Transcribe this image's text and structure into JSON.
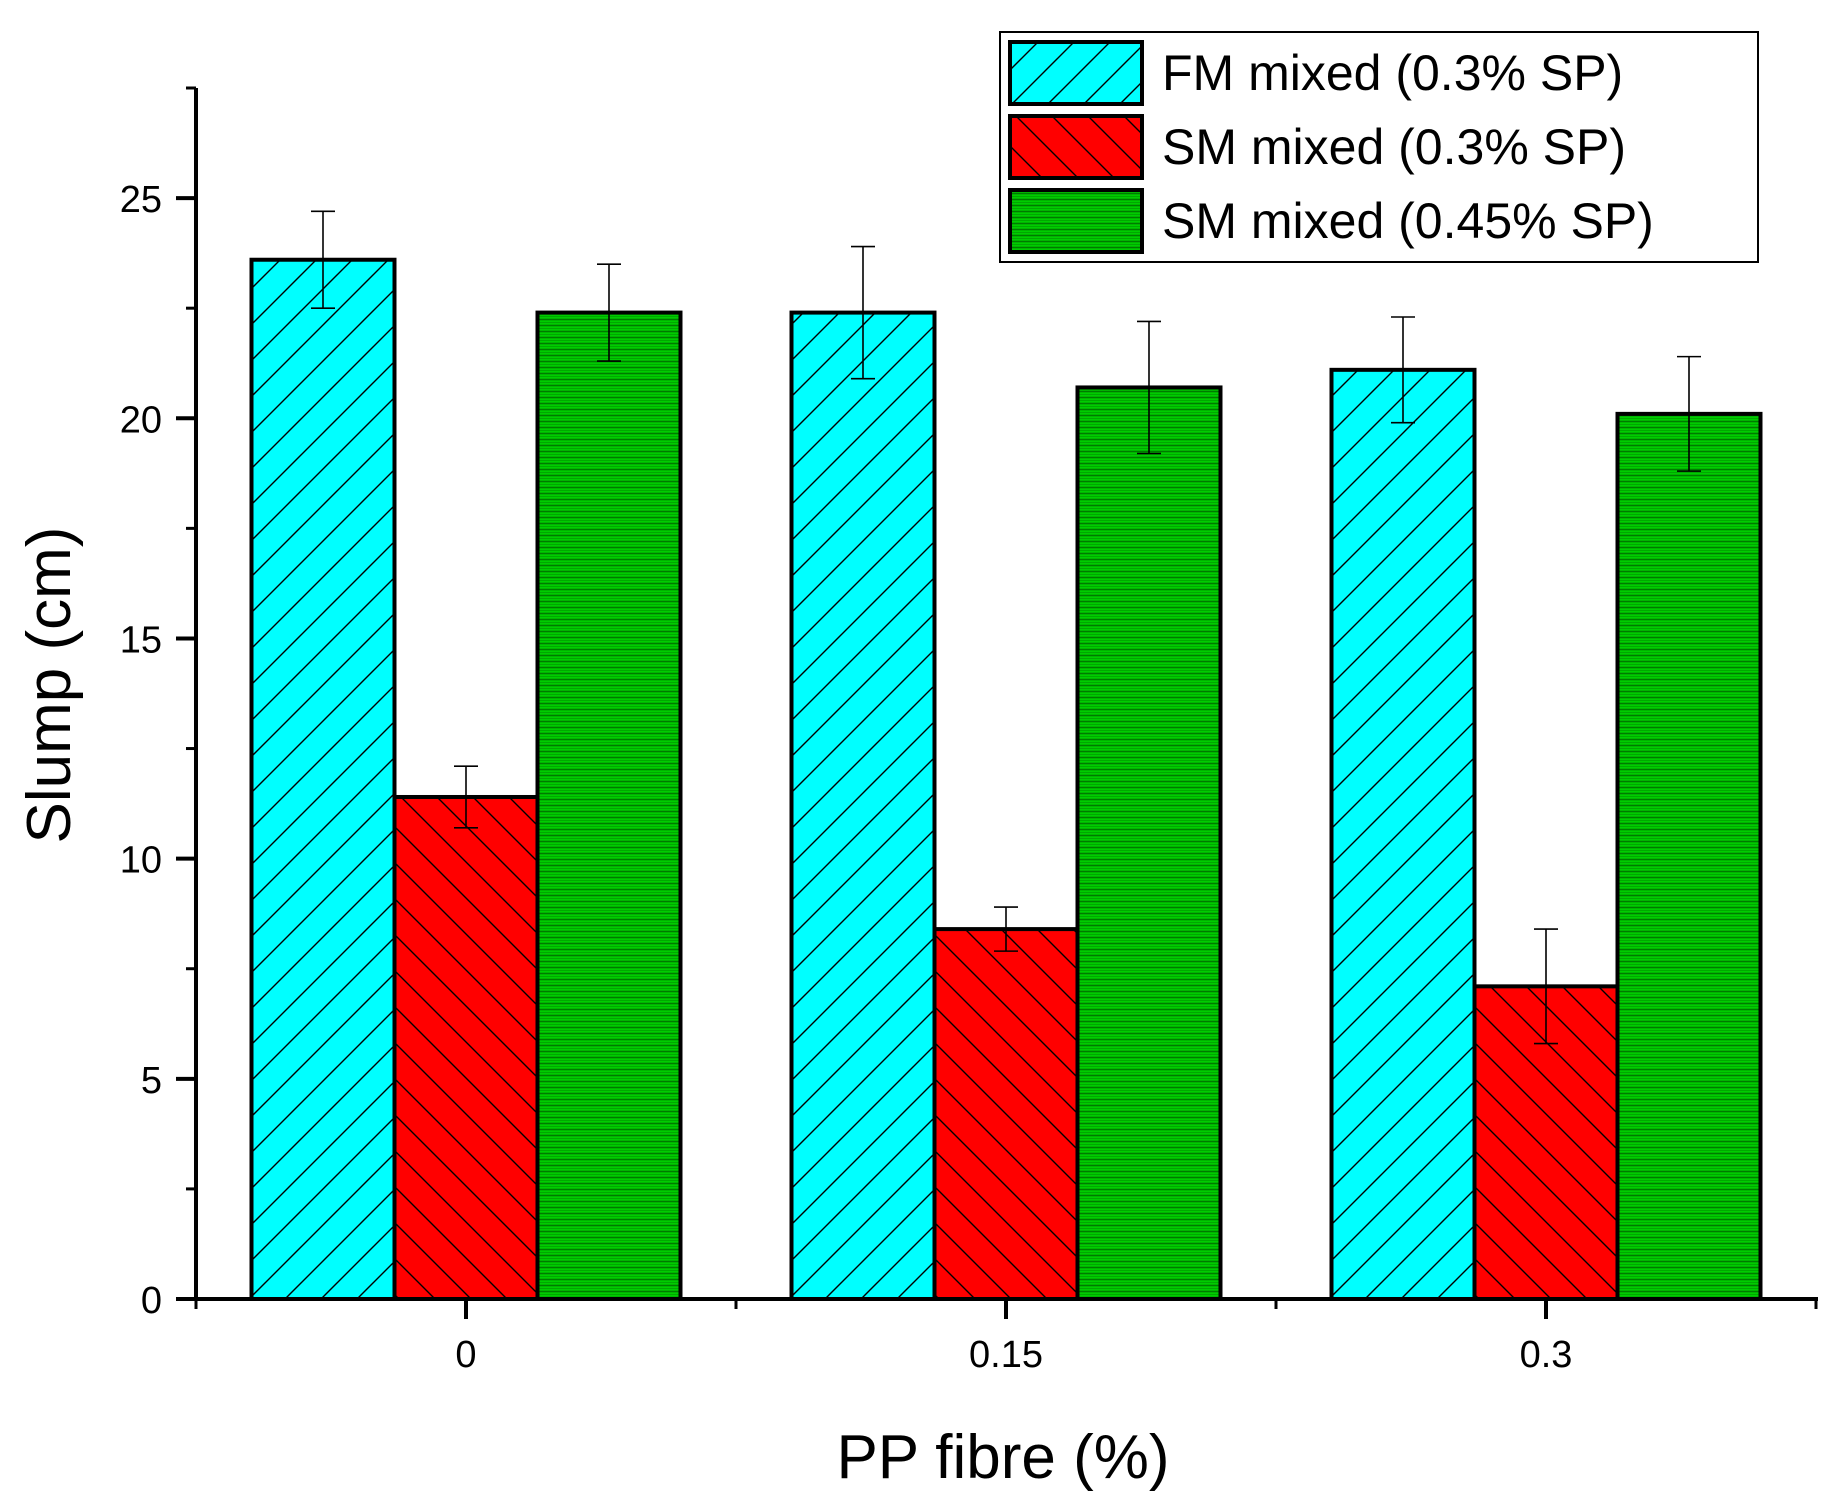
{
  "chart_data": {
    "type": "bar",
    "title": "",
    "xlabel": "PP fibre (%)",
    "ylabel": "Slump (cm)",
    "categories": [
      "0",
      "0.15",
      "0.3"
    ],
    "ylim": [
      0,
      27.5
    ],
    "yticks": [
      0,
      5,
      10,
      15,
      20,
      25
    ],
    "ytick_labels": [
      "0",
      "5",
      "10",
      "15",
      "20",
      "25"
    ],
    "grid": false,
    "legend_position": "top-right",
    "series": [
      {
        "name": "FM mixed (0.3% SP)",
        "color": "#00ffff",
        "pattern": "diagonal-forward",
        "values": [
          23.6,
          22.4,
          21.1
        ],
        "errors": [
          1.1,
          1.5,
          1.2
        ]
      },
      {
        "name": "SM mixed (0.3% SP)",
        "color": "#ff0000",
        "pattern": "diagonal-backward",
        "values": [
          11.4,
          8.4,
          7.1
        ],
        "errors": [
          0.7,
          0.5,
          1.3
        ]
      },
      {
        "name": "SM mixed (0.45% SP)",
        "color": "#00cc00",
        "pattern": "dense-horizontal",
        "values": [
          22.4,
          20.7,
          20.1
        ],
        "errors": [
          1.1,
          1.5,
          1.3
        ]
      }
    ]
  }
}
